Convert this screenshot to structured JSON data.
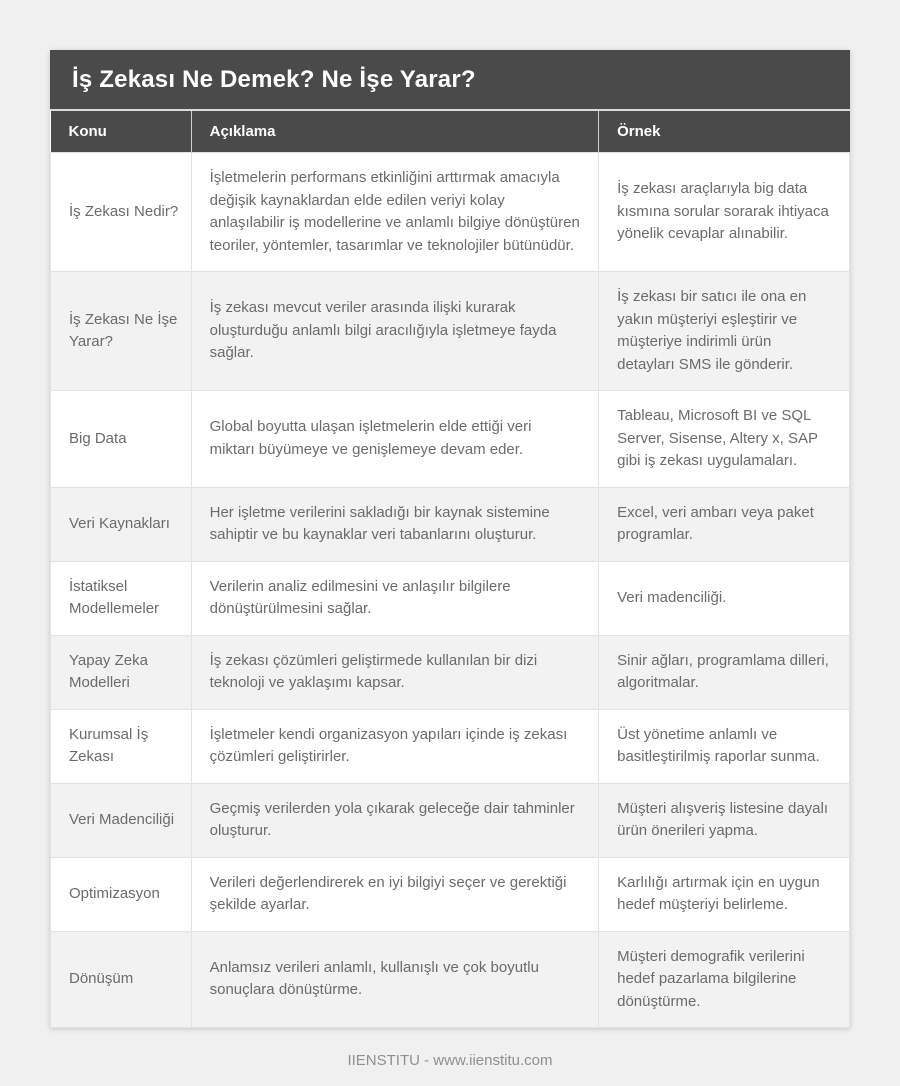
{
  "page": {
    "title": "İş Zekası Ne Demek? Ne İşe Yarar?",
    "footer": "IIENSTITU - www.iienstitu.com"
  },
  "colors": {
    "header_bg": "#4a4a4a",
    "alt_row_bg": "#f2f2f2",
    "body_text": "#6b6b6b",
    "page_bg": "#f0f0f1"
  },
  "table": {
    "columns": [
      "Konu",
      "Açıklama",
      "Örnek"
    ],
    "rows": [
      {
        "konu": "İş Zekası Nedir?",
        "aciklama": "İşletmelerin performans etkinliğini arttırmak amacıyla değişik kaynaklardan elde edilen veriyi kolay anlaşılabilir iş modellerine ve anlamlı bilgiye dönüştüren teoriler, yöntemler, tasarımlar ve teknolojiler bütünüdür.",
        "ornek": "İş zekası araçlarıyla big data kısmına sorular sorarak ihtiyaca yönelik cevaplar alınabilir."
      },
      {
        "konu": "İş Zekası Ne İşe Yarar?",
        "aciklama": "İş zekası mevcut veriler arasında ilişki kurarak oluşturduğu anlamlı bilgi aracılığıyla işletmeye fayda sağlar.",
        "ornek": "İş zekası bir satıcı ile ona en yakın müşteriyi eşleştirir ve müşteriye indirimli ürün detayları SMS ile gönderir."
      },
      {
        "konu": "Big Data",
        "aciklama": "Global boyutta ulaşan işletmelerin elde ettiği veri miktarı büyümeye ve genişlemeye devam eder.",
        "ornek": "Tableau, Microsoft BI ve SQL Server, Sisense, Altery x, SAP gibi iş zekası uygulamaları."
      },
      {
        "konu": "Veri Kaynakları",
        "aciklama": "Her işletme verilerini sakladığı bir kaynak sistemine sahiptir ve bu kaynaklar veri tabanlarını oluşturur.",
        "ornek": "Excel, veri ambarı veya paket programlar."
      },
      {
        "konu": "İstatiksel Modellemeler",
        "aciklama": "Verilerin analiz edilmesini ve anlaşılır bilgilere dönüştürülmesini sağlar.",
        "ornek": "Veri madenciliği."
      },
      {
        "konu": "Yapay Zeka Modelleri",
        "aciklama": "İş zekası çözümleri geliştirmede kullanılan bir dizi teknoloji ve yaklaşımı kapsar.",
        "ornek": "Sinir ağları, programlama dilleri, algoritmalar."
      },
      {
        "konu": "Kurumsal İş Zekası",
        "aciklama": "İşletmeler kendi organizasyon yapıları içinde iş zekası çözümleri geliştirirler.",
        "ornek": "Üst yönetime anlamlı ve basitleştirilmiş raporlar sunma."
      },
      {
        "konu": "Veri Madenciliği",
        "aciklama": "Geçmiş verilerden yola çıkarak geleceğe dair tahminler oluşturur.",
        "ornek": "Müşteri alışveriş listesine dayalı ürün önerileri yapma."
      },
      {
        "konu": "Optimizasyon",
        "aciklama": "Verileri değerlendirerek en iyi bilgiyi seçer ve gerektiği şekilde ayarlar.",
        "ornek": "Karlılığı artırmak için en uygun hedef müşteriyi belirleme."
      },
      {
        "konu": "Dönüşüm",
        "aciklama": "Anlamsız verileri anlamlı, kullanışlı ve çok boyutlu sonuçlara dönüştürme.",
        "ornek": "Müşteri demografik verilerini hedef pazarlama bilgilerine dönüştürme."
      }
    ]
  }
}
